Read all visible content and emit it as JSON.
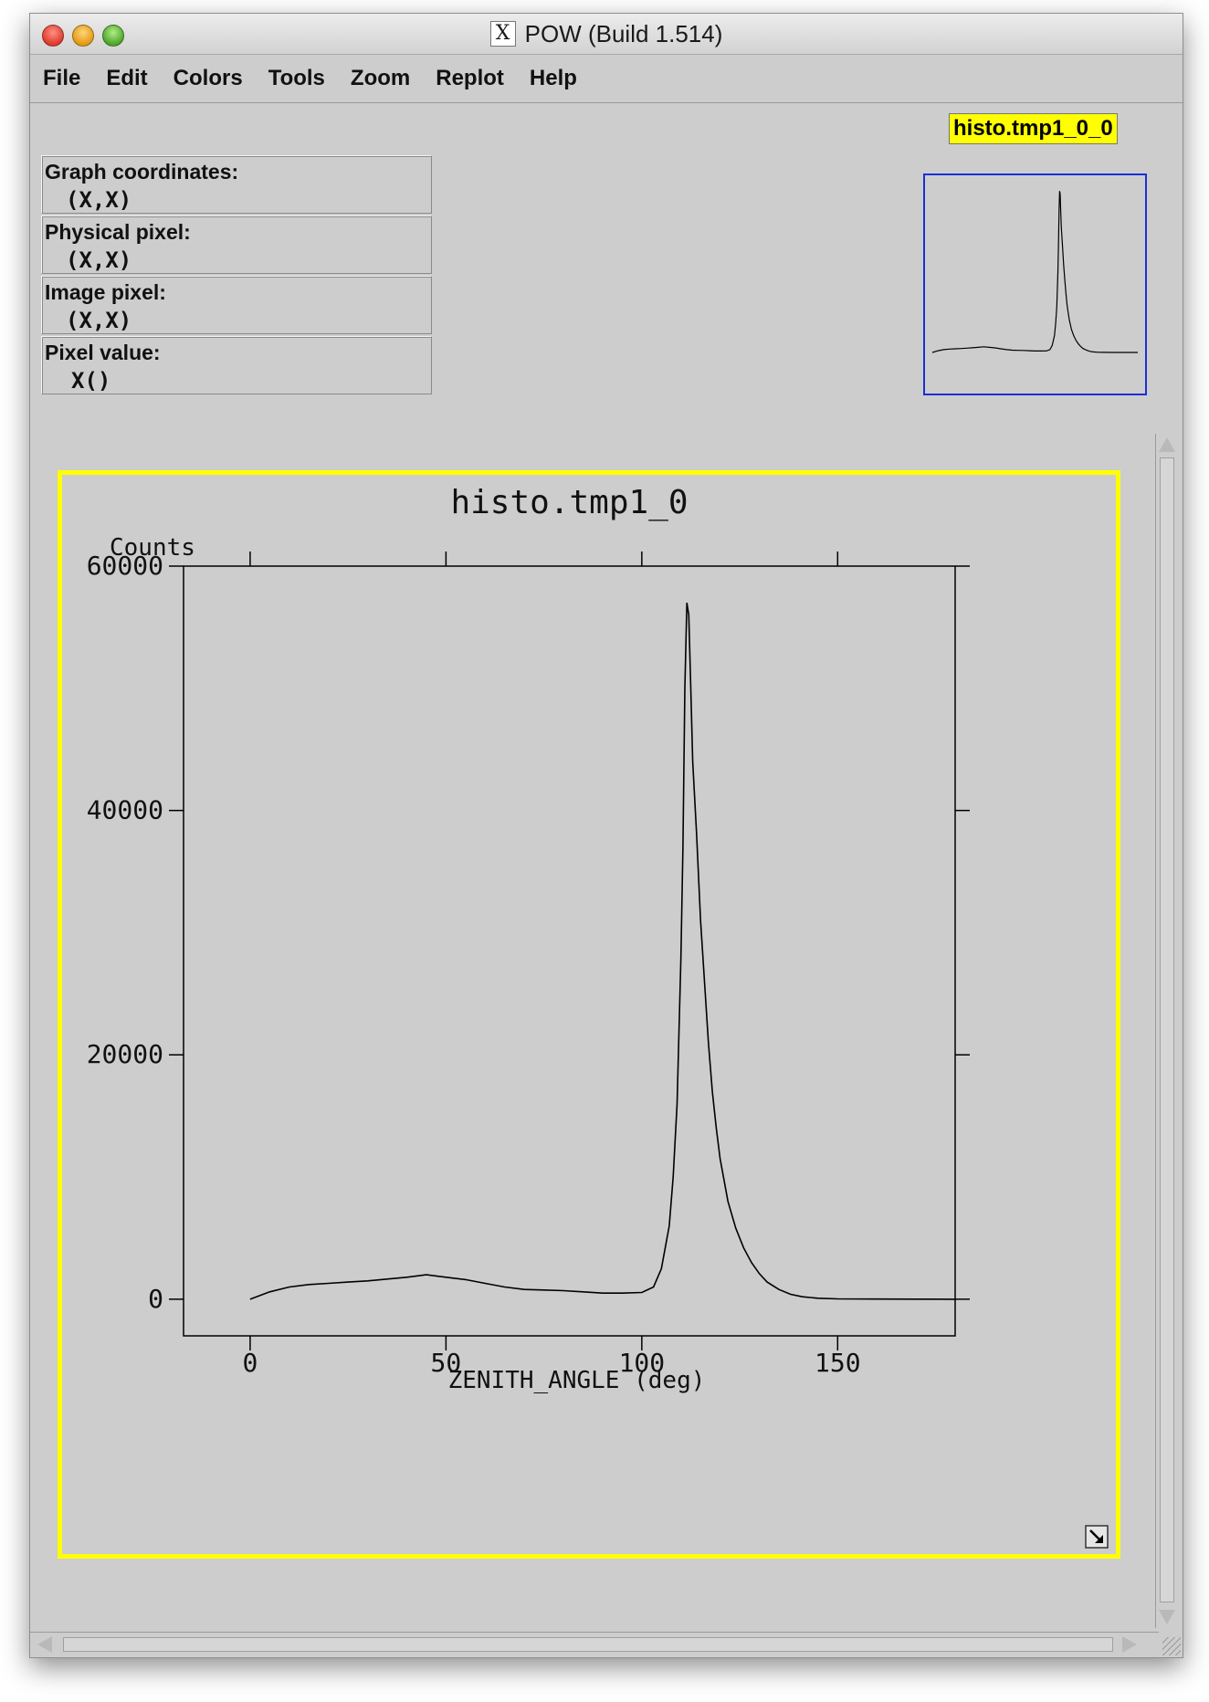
{
  "window": {
    "title": "POW (Build 1.514)",
    "x_logo": "X"
  },
  "menu": [
    "File",
    "Edit",
    "Colors",
    "Tools",
    "Zoom",
    "Replot",
    "Help"
  ],
  "coords": {
    "graph_label": "Graph coordinates:",
    "graph_value": "(X,X)",
    "physical_label": "Physical pixel:",
    "physical_value": "(X,X)",
    "image_label": "Image pixel:",
    "image_value": "(X,X)",
    "pixel_label": "Pixel value:",
    "pixel_value": "X()"
  },
  "thumbnail": {
    "label": "histo.tmp1_0_0",
    "label_color": "#ffff00",
    "frame_color": "#1c2fd6"
  },
  "icons": {
    "resize": "resize-arrow-icon",
    "close": "close-icon",
    "minimize": "minimize-icon",
    "zoom": "zoom-icon"
  },
  "chart_data": {
    "type": "line",
    "title": "histo.tmp1_0",
    "xlabel": "ZENITH_ANGLE (deg)",
    "ylabel": "Counts",
    "xlim": [
      -17,
      180
    ],
    "ylim": [
      -3000,
      60000
    ],
    "x_ticks": [
      0,
      50,
      100,
      150
    ],
    "x_tick_labels": [
      "0",
      "50",
      "100",
      "150"
    ],
    "y_ticks": [
      0,
      20000,
      40000,
      60000
    ],
    "y_tick_labels": [
      "0",
      "20000",
      "40000",
      "60000"
    ],
    "grid": false,
    "frame_color": "#ffff00",
    "series": [
      {
        "x": [
          0,
          5,
          10,
          15,
          20,
          25,
          30,
          35,
          40,
          45,
          50,
          55,
          60,
          65,
          70,
          75,
          80,
          85,
          90,
          95,
          100,
          103,
          105,
          107,
          108,
          109,
          110,
          110.5,
          111,
          111.5,
          112,
          112.5,
          113,
          114,
          115,
          116,
          117,
          118,
          119,
          120,
          122,
          124,
          126,
          128,
          130,
          132,
          135,
          138,
          141,
          145,
          150,
          160,
          170,
          180
        ],
        "values": [
          0,
          600,
          1000,
          1200,
          1300,
          1400,
          1500,
          1650,
          1800,
          2000,
          1800,
          1600,
          1300,
          1000,
          800,
          750,
          700,
          600,
          500,
          500,
          550,
          1000,
          2500,
          6000,
          10000,
          16000,
          28000,
          37000,
          50000,
          57000,
          56000,
          50000,
          44000,
          38000,
          31000,
          26000,
          21000,
          17000,
          14000,
          11500,
          8000,
          5800,
          4200,
          3000,
          2100,
          1400,
          800,
          400,
          200,
          80,
          30,
          10,
          5,
          0
        ]
      }
    ]
  }
}
